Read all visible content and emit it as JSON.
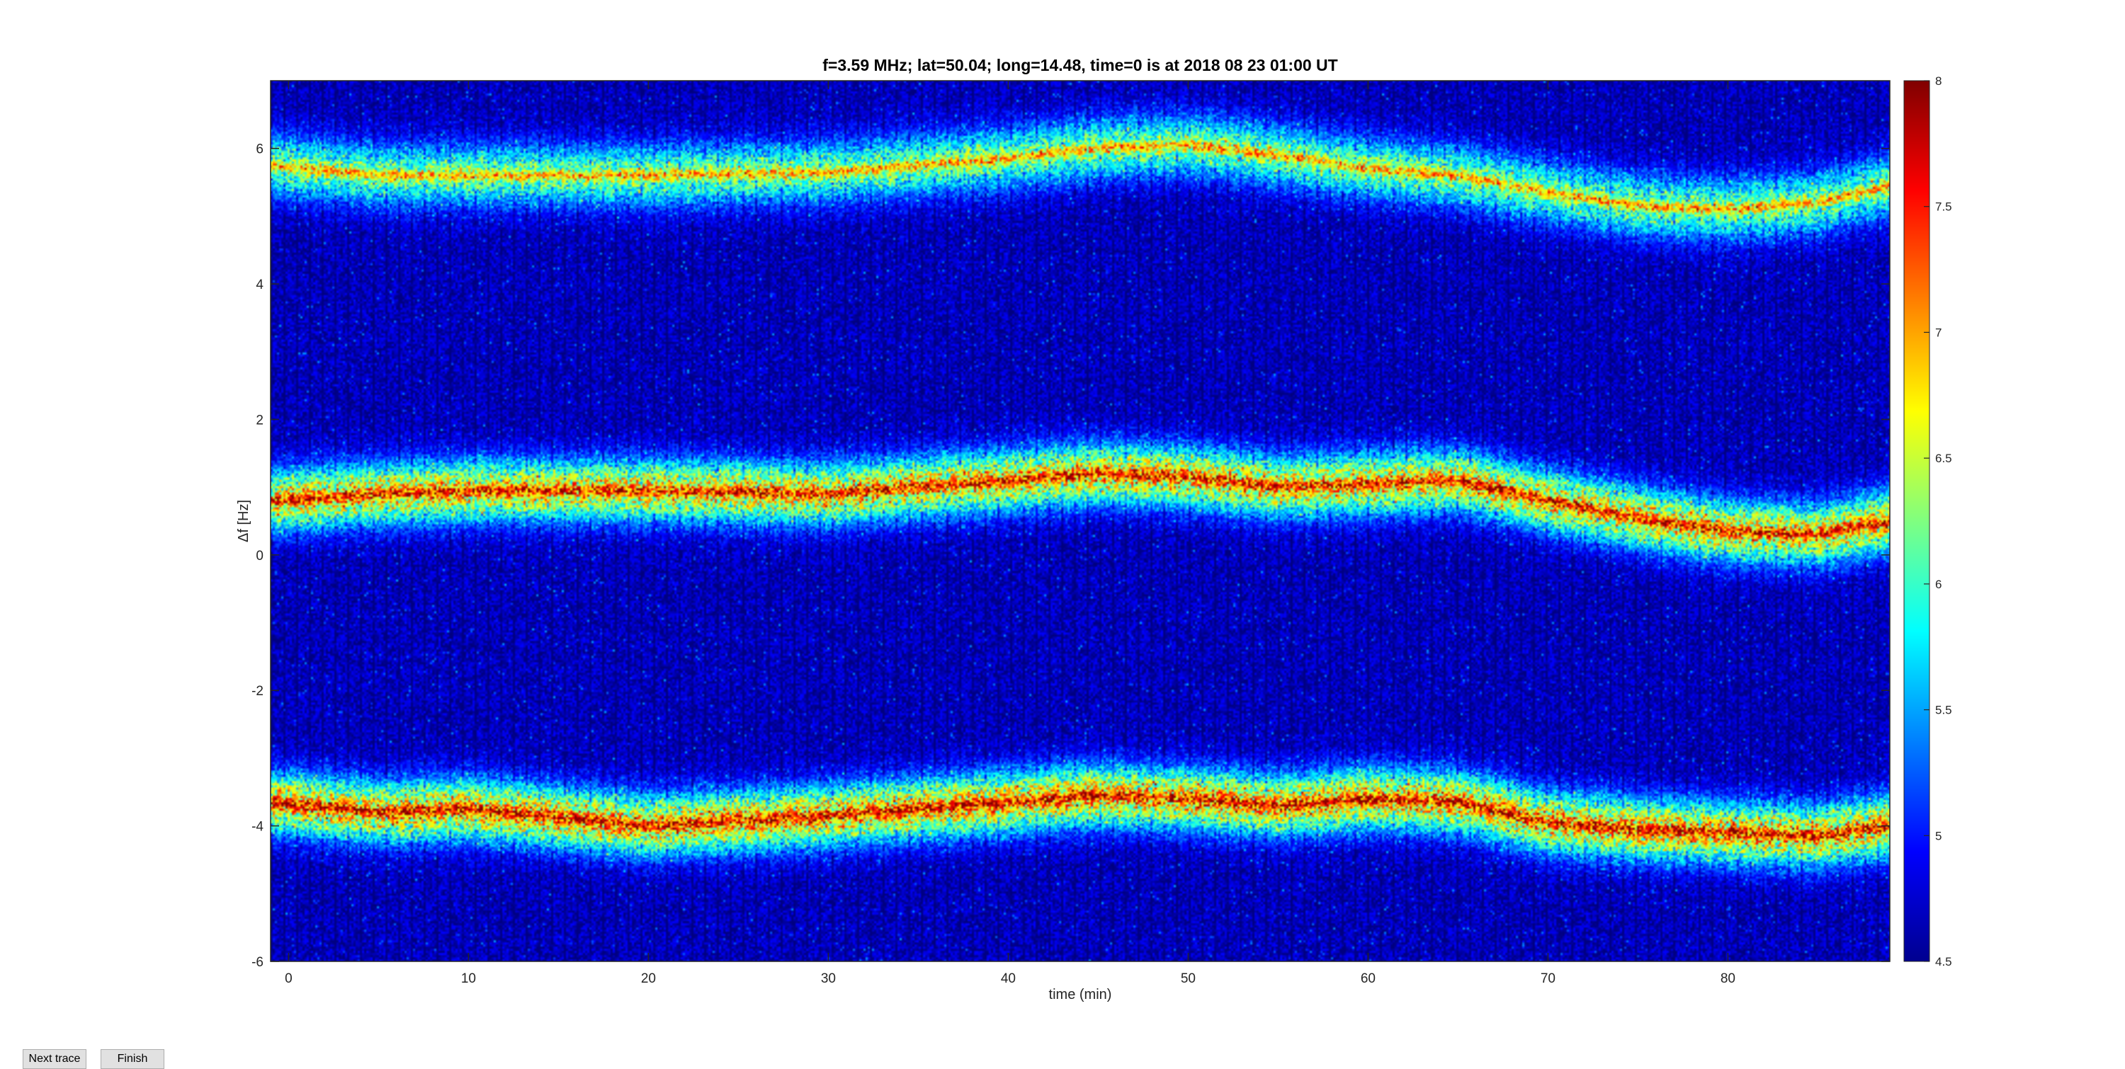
{
  "buttons": {
    "next_trace_label": "Next trace",
    "finish_label": "Finish"
  },
  "chart_data": {
    "type": "heatmap",
    "title": "f=3.59 MHz;  lat=50.04; long=14.48, time=0 is at 2018 08 23 01:00 UT",
    "xlabel": "time (min)",
    "ylabel": "Δf [Hz]",
    "xlim": [
      -1,
      89
    ],
    "ylim": [
      -6,
      7
    ],
    "xticks": [
      0,
      10,
      20,
      30,
      40,
      50,
      60,
      70,
      80
    ],
    "yticks": [
      -6,
      -4,
      -2,
      0,
      2,
      4,
      6
    ],
    "colorbar": {
      "min": 4.5,
      "max": 8,
      "ticks": [
        4.5,
        5,
        5.5,
        6,
        6.5,
        7,
        7.5,
        8
      ],
      "colormap": "jet"
    },
    "background_level": 4.7,
    "bands": [
      {
        "peak_level": 6.3,
        "trace_x": [
          -1,
          5,
          10,
          20,
          30,
          40,
          45,
          50,
          55,
          60,
          65,
          70,
          75,
          80,
          85,
          89
        ],
        "trace_y": [
          5.75,
          5.6,
          5.6,
          5.6,
          5.65,
          5.85,
          6.0,
          6.05,
          5.9,
          5.7,
          5.6,
          5.35,
          5.15,
          5.1,
          5.2,
          5.45
        ]
      },
      {
        "peak_level": 6.9,
        "trace_x": [
          -1,
          5,
          10,
          20,
          30,
          40,
          45,
          50,
          55,
          60,
          65,
          70,
          75,
          80,
          85,
          89
        ],
        "trace_y": [
          0.8,
          0.9,
          0.95,
          0.95,
          0.9,
          1.1,
          1.2,
          1.15,
          1.0,
          1.05,
          1.1,
          0.8,
          0.55,
          0.35,
          0.3,
          0.5
        ]
      },
      {
        "peak_level": 7.0,
        "trace_x": [
          -1,
          5,
          10,
          20,
          30,
          40,
          45,
          50,
          55,
          60,
          65,
          70,
          75,
          80,
          85,
          89
        ],
        "trace_y": [
          -3.65,
          -3.8,
          -3.75,
          -4.0,
          -3.85,
          -3.65,
          -3.55,
          -3.6,
          -3.7,
          -3.6,
          -3.65,
          -3.95,
          -4.05,
          -4.1,
          -4.15,
          -4.0
        ]
      }
    ]
  }
}
